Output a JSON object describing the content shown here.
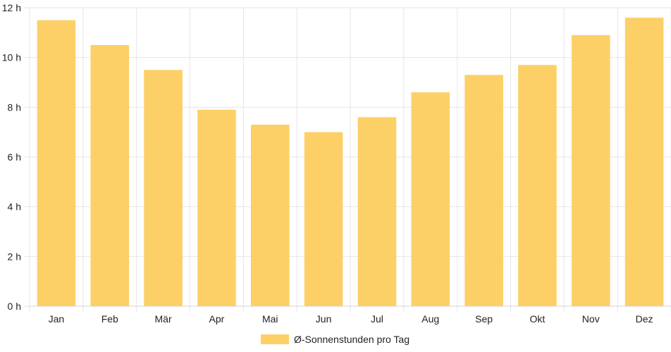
{
  "chart_data": {
    "type": "bar",
    "categories": [
      "Jan",
      "Feb",
      "Mär",
      "Apr",
      "Mai",
      "Jun",
      "Jul",
      "Aug",
      "Sep",
      "Okt",
      "Nov",
      "Dez"
    ],
    "series": [
      {
        "name": "Ø-Sonnenstunden pro Tag",
        "values": [
          11.5,
          10.5,
          9.5,
          7.9,
          7.3,
          7.0,
          7.6,
          8.6,
          9.3,
          9.7,
          10.9,
          11.6
        ],
        "color": "#fdd067"
      }
    ],
    "title": "",
    "xlabel": "",
    "ylabel": "",
    "ylim": [
      0,
      12
    ],
    "y_ticks": [
      "0 h",
      "2 h",
      "4 h",
      "6 h",
      "8 h",
      "10 h",
      "12 h"
    ],
    "grid": true,
    "grid_color": "#e6e6e6",
    "legend": "bottom-center"
  }
}
